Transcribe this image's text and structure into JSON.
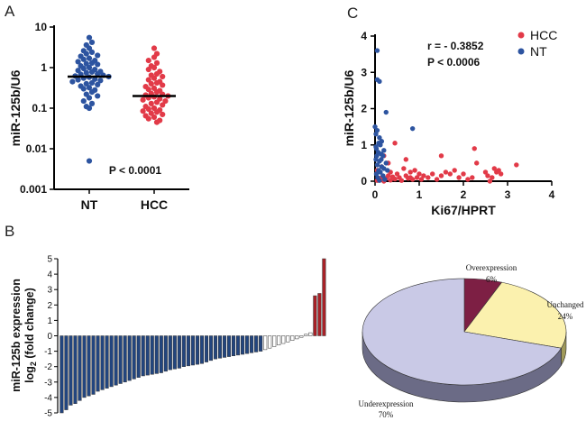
{
  "colors": {
    "nt": "#2d54a0",
    "hcc": "#e23a48",
    "bar_down": "#22457f",
    "bar_up": "#a82127",
    "bar_unchanged": "#ffffff",
    "pie_over": "#7d1f44",
    "pie_unchanged": "#fbf1ae",
    "pie_under": "#c9c9e6",
    "pie_under_side": "#6b6b86"
  },
  "chart_data": [
    {
      "panel": "A",
      "type": "scatter",
      "ylabel": "miR-125b/U6",
      "yscale": "log",
      "ylim": [
        0.001,
        10
      ],
      "yticks": [
        "10",
        "1",
        "0.1",
        "0.01",
        "0.001"
      ],
      "categories": [
        "NT",
        "HCC"
      ],
      "annotation": "P < 0.0001",
      "series": [
        {
          "name": "NT",
          "median": 0.6,
          "values": [
            5.5,
            4.2,
            3.6,
            3.0,
            2.6,
            2.4,
            2.2,
            2.0,
            1.9,
            1.7,
            1.6,
            1.5,
            1.4,
            1.3,
            1.25,
            1.2,
            1.1,
            1.0,
            0.95,
            0.9,
            0.85,
            0.8,
            0.78,
            0.75,
            0.7,
            0.68,
            0.65,
            0.62,
            0.6,
            0.58,
            0.55,
            0.52,
            0.5,
            0.48,
            0.45,
            0.42,
            0.4,
            0.38,
            0.35,
            0.32,
            0.3,
            0.28,
            0.25,
            0.22,
            0.2,
            0.18,
            0.15,
            0.13,
            0.11,
            0.1,
            0.005
          ]
        },
        {
          "name": "HCC",
          "median": 0.2,
          "values": [
            3.0,
            2.2,
            1.8,
            1.5,
            1.3,
            1.1,
            1.0,
            0.9,
            0.8,
            0.7,
            0.65,
            0.6,
            0.55,
            0.5,
            0.45,
            0.42,
            0.4,
            0.37,
            0.34,
            0.31,
            0.29,
            0.27,
            0.25,
            0.23,
            0.22,
            0.21,
            0.2,
            0.19,
            0.18,
            0.17,
            0.16,
            0.15,
            0.14,
            0.13,
            0.12,
            0.11,
            0.1,
            0.095,
            0.09,
            0.085,
            0.08,
            0.075,
            0.07,
            0.065,
            0.06,
            0.055,
            0.05,
            0.045
          ]
        }
      ]
    },
    {
      "panel": "C",
      "type": "scatter",
      "xlabel": "Ki67/HPRT",
      "ylabel": "miR-125b/U6",
      "xlim": [
        0,
        4
      ],
      "ylim": [
        0,
        4
      ],
      "xticks": [
        "0",
        "1",
        "2",
        "3",
        "4"
      ],
      "yticks": [
        "0",
        "1",
        "2",
        "3",
        "4"
      ],
      "annotation_r": "r = - 0.3852",
      "annotation_p": "P < 0.0006",
      "legend_position": "top-right",
      "series": [
        {
          "name": "HCC",
          "points": [
            [
              0.05,
              0.02
            ],
            [
              0.1,
              0.05
            ],
            [
              0.15,
              0.1
            ],
            [
              0.2,
              0.0
            ],
            [
              0.25,
              0.08
            ],
            [
              0.3,
              0.15
            ],
            [
              0.35,
              0.03
            ],
            [
              0.4,
              0.12
            ],
            [
              0.45,
              0.06
            ],
            [
              0.5,
              0.2
            ],
            [
              0.55,
              0.1
            ],
            [
              0.6,
              0.02
            ],
            [
              0.65,
              0.35
            ],
            [
              0.7,
              0.15
            ],
            [
              0.75,
              0.08
            ],
            [
              0.8,
              0.25
            ],
            [
              0.85,
              0.05
            ],
            [
              0.9,
              0.3
            ],
            [
              0.95,
              0.1
            ],
            [
              1.0,
              0.2
            ],
            [
              1.05,
              0.05
            ],
            [
              1.1,
              0.15
            ],
            [
              1.2,
              0.1
            ],
            [
              1.3,
              0.2
            ],
            [
              1.4,
              0.05
            ],
            [
              1.5,
              0.15
            ],
            [
              1.6,
              0.25
            ],
            [
              1.7,
              0.2
            ],
            [
              1.8,
              0.3
            ],
            [
              1.9,
              0.1
            ],
            [
              2.0,
              0.2
            ],
            [
              2.1,
              0.05
            ],
            [
              2.2,
              0.1
            ],
            [
              2.25,
              0.9
            ],
            [
              2.3,
              0.5
            ],
            [
              2.5,
              0.25
            ],
            [
              2.55,
              0.15
            ],
            [
              2.6,
              0.0
            ],
            [
              2.65,
              0.1
            ],
            [
              2.7,
              0.35
            ],
            [
              2.75,
              0.25
            ],
            [
              2.8,
              0.3
            ],
            [
              2.85,
              0.2
            ],
            [
              3.2,
              0.45
            ],
            [
              0.45,
              1.05
            ],
            [
              0.3,
              0.5
            ],
            [
              0.2,
              0.7
            ],
            [
              0.15,
              0.4
            ],
            [
              0.35,
              0.25
            ],
            [
              0.05,
              0.3
            ],
            [
              1.5,
              0.7
            ],
            [
              0.7,
              0.6
            ],
            [
              0.8,
              0.1
            ]
          ]
        },
        {
          "name": "NT",
          "points": [
            [
              0.05,
              3.6
            ],
            [
              0.05,
              2.8
            ],
            [
              0.1,
              2.75
            ],
            [
              0.25,
              1.9
            ],
            [
              0.0,
              1.5
            ],
            [
              0.05,
              1.4
            ],
            [
              0.02,
              1.3
            ],
            [
              0.1,
              1.2
            ],
            [
              0.15,
              1.1
            ],
            [
              0.08,
              1.05
            ],
            [
              0.12,
              1.0
            ],
            [
              0.03,
              0.9
            ],
            [
              0.2,
              0.85
            ],
            [
              0.07,
              0.8
            ],
            [
              0.14,
              0.75
            ],
            [
              0.18,
              0.7
            ],
            [
              0.02,
              0.6
            ],
            [
              0.1,
              0.55
            ],
            [
              0.25,
              0.5
            ],
            [
              0.05,
              0.45
            ],
            [
              0.15,
              0.4
            ],
            [
              0.2,
              0.35
            ],
            [
              0.08,
              0.3
            ],
            [
              0.12,
              0.25
            ],
            [
              0.03,
              0.2
            ],
            [
              0.18,
              0.15
            ],
            [
              0.06,
              0.1
            ],
            [
              0.22,
              0.05
            ],
            [
              0.1,
              0.02
            ],
            [
              0.14,
              0.6
            ],
            [
              0.04,
              0.7
            ],
            [
              0.28,
              0.3
            ],
            [
              0.02,
              0.95
            ],
            [
              0.85,
              1.45
            ]
          ]
        }
      ]
    },
    {
      "panel": "B",
      "type": "bar",
      "ylabel_line1": "miR-125b expression",
      "ylabel_line2": "log",
      "ylabel_sub": "2",
      "ylabel_line2_rest": " (fold change)",
      "ylim": [
        -5,
        5
      ],
      "yticks": [
        "5",
        "4",
        "3",
        "2",
        "1",
        "0",
        "-1",
        "-2",
        "-3",
        "-4",
        "-5"
      ],
      "values": [
        -5.0,
        -4.8,
        -4.5,
        -4.4,
        -4.2,
        -4.0,
        -3.9,
        -3.8,
        -3.6,
        -3.5,
        -3.4,
        -3.3,
        -3.2,
        -3.1,
        -3.0,
        -2.9,
        -2.8,
        -2.7,
        -2.6,
        -2.55,
        -2.5,
        -2.45,
        -2.4,
        -2.3,
        -2.2,
        -2.15,
        -2.1,
        -2.0,
        -1.95,
        -1.9,
        -1.85,
        -1.8,
        -1.7,
        -1.6,
        -1.5,
        -1.45,
        -1.4,
        -1.35,
        -1.3,
        -1.25,
        -1.2,
        -1.15,
        -1.1,
        -1.05,
        -1.0,
        -0.9,
        -0.8,
        -0.7,
        -0.6,
        -0.5,
        -0.4,
        -0.3,
        -0.2,
        -0.1,
        0.1,
        0.2,
        2.6,
        2.75,
        5.0
      ]
    },
    {
      "panel": "B-pie",
      "type": "pie",
      "slices": [
        {
          "label": "Overexpression",
          "value": 6,
          "pct": "6%"
        },
        {
          "label": "Unchanged",
          "value": 24,
          "pct": "24%"
        },
        {
          "label": "Underexpression",
          "value": 70,
          "pct": "70%"
        }
      ]
    }
  ],
  "panels": {
    "a": "A",
    "b": "B",
    "c": "C"
  }
}
